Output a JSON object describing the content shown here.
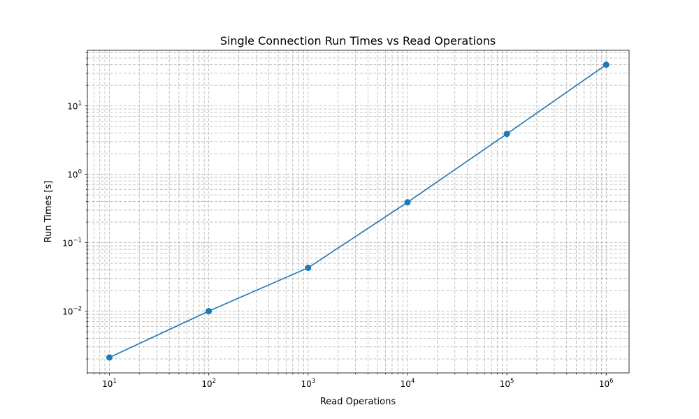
{
  "chart_data": {
    "type": "line",
    "title": "Single Connection Run Times vs Read Operations",
    "xlabel": "Read Operations",
    "ylabel": "Run Times [s]",
    "xscale": "log",
    "yscale": "log",
    "xlim": [
      6,
      1700000
    ],
    "ylim": [
      0.00125,
      65
    ],
    "grid": "both major and minor, dashed",
    "color": "#1f77b4",
    "x_tick_labels": [
      {
        "value": 10,
        "base": "10",
        "exp": "1"
      },
      {
        "value": 100,
        "base": "10",
        "exp": "2"
      },
      {
        "value": 1000,
        "base": "10",
        "exp": "3"
      },
      {
        "value": 10000,
        "base": "10",
        "exp": "4"
      },
      {
        "value": 100000,
        "base": "10",
        "exp": "5"
      },
      {
        "value": 1000000,
        "base": "10",
        "exp": "6"
      }
    ],
    "y_tick_labels": [
      {
        "value": 0.01,
        "base": "10",
        "exp": "−2"
      },
      {
        "value": 0.1,
        "base": "10",
        "exp": "−1"
      },
      {
        "value": 1,
        "base": "10",
        "exp": "0"
      },
      {
        "value": 10,
        "base": "10",
        "exp": "1"
      }
    ],
    "series": [
      {
        "x": [
          10,
          100,
          1000,
          10000,
          100000,
          1000000
        ],
        "y": [
          0.0021,
          0.01,
          0.043,
          0.39,
          3.9,
          40
        ]
      }
    ]
  }
}
